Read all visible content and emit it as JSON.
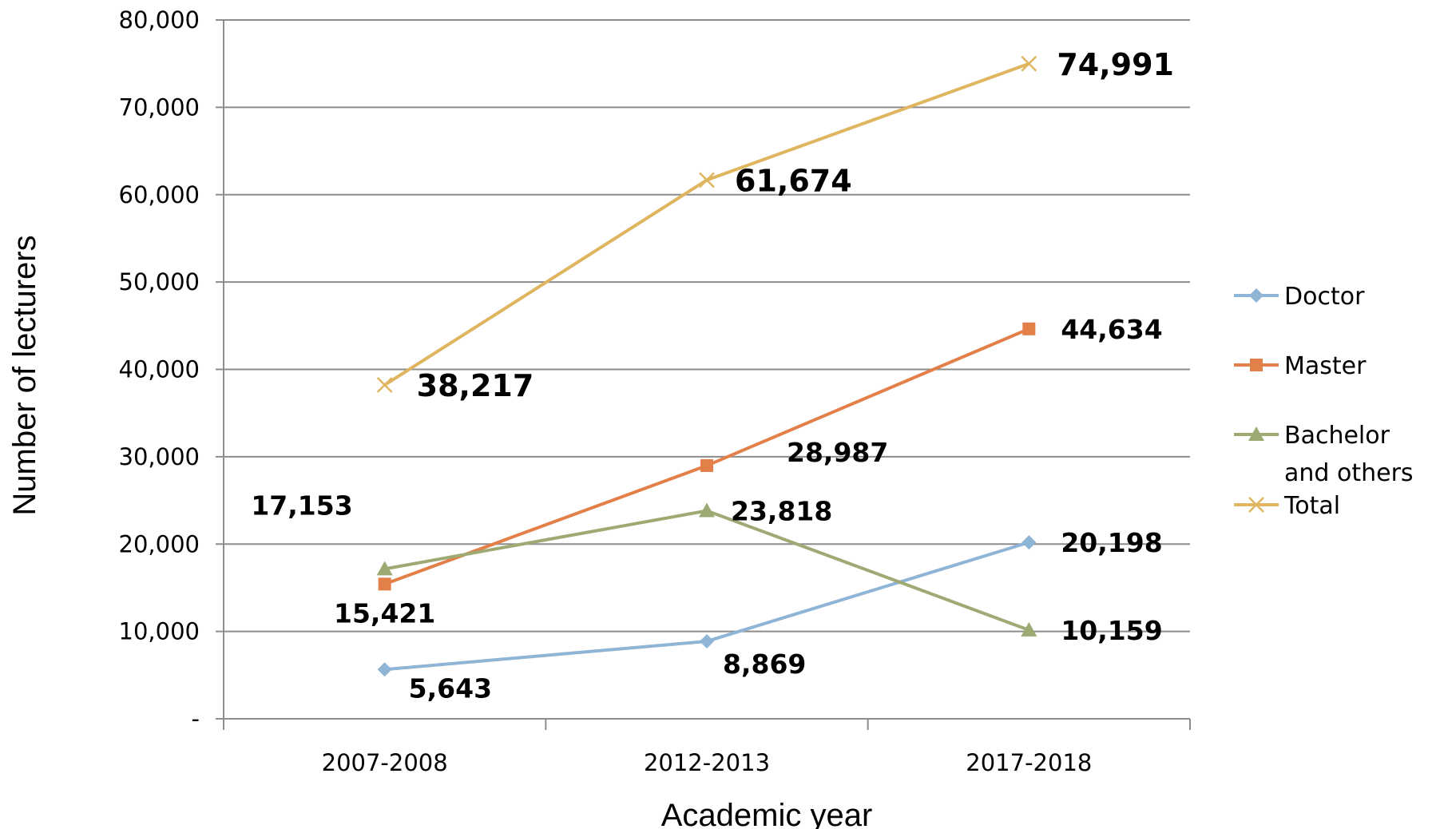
{
  "chart_data": {
    "type": "line",
    "xlabel": "Academic year",
    "ylabel": "Number of lecturers",
    "categories": [
      "2007-2008",
      "2012-2013",
      "2017-2018"
    ],
    "ylim": [
      0,
      80000
    ],
    "y_ticks": [
      0,
      10000,
      20000,
      30000,
      40000,
      50000,
      60000,
      70000,
      80000
    ],
    "y_tick_labels": [
      "-",
      "10,000",
      "20,000",
      "30,000",
      "40,000",
      "50,000",
      "60,000",
      "70,000",
      "80,000"
    ],
    "grid": true,
    "legend_position": "right",
    "series": [
      {
        "name": "Doctor",
        "values": [
          5643,
          8869,
          20198
        ],
        "labels": [
          "5,643",
          "8,869",
          "20,198"
        ],
        "color": "#8eb4d6",
        "marker": "diamond"
      },
      {
        "name": "Master",
        "values": [
          15421,
          28987,
          44634
        ],
        "labels": [
          "15,421",
          "28,987",
          "44,634"
        ],
        "color": "#e3804a",
        "marker": "square"
      },
      {
        "name": "Bachelor and others",
        "legend_lines": [
          "Bachelor",
          "and others"
        ],
        "values": [
          17153,
          23818,
          10159
        ],
        "labels": [
          "17,153",
          "23,818",
          "10,159"
        ],
        "color": "#9eaa74",
        "marker": "triangle"
      },
      {
        "name": "Total",
        "values": [
          38217,
          61674,
          74991
        ],
        "labels": [
          "38,217",
          "61,674",
          "74,991"
        ],
        "color": "#dfb55f",
        "marker": "x"
      }
    ]
  }
}
